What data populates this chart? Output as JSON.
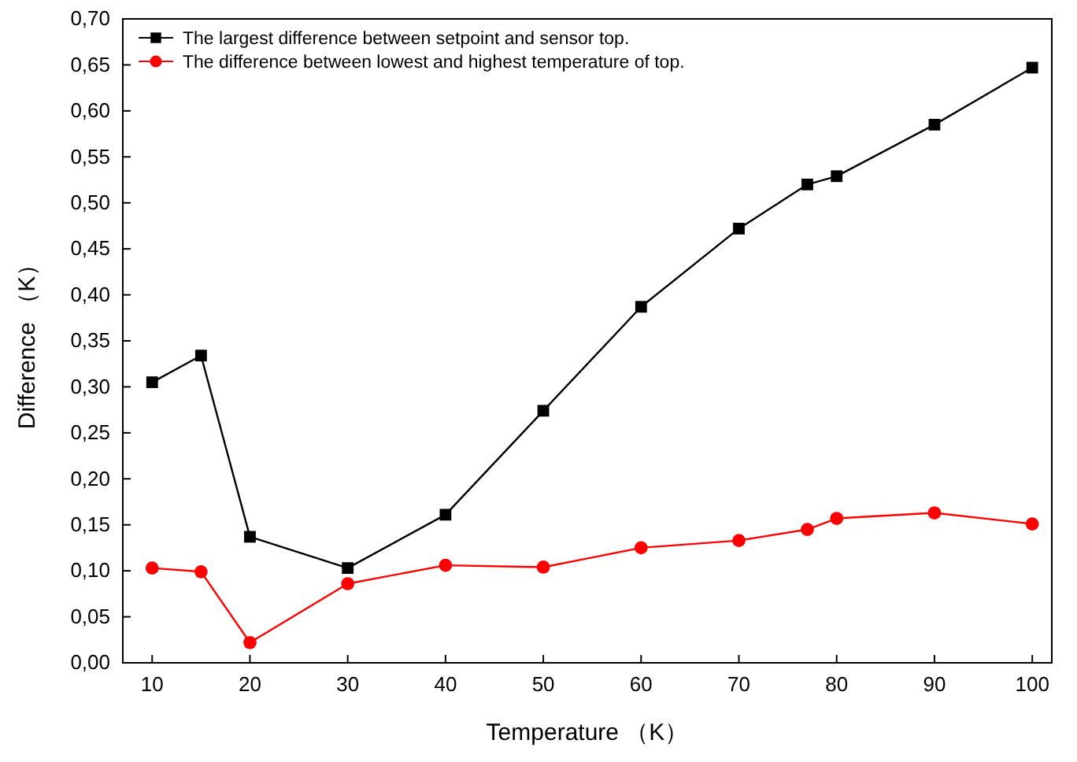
{
  "chart_data": {
    "type": "line",
    "xlabel": "Temperature （K）",
    "ylabel": "Difference （K）",
    "x": [
      10,
      15,
      20,
      30,
      40,
      50,
      60,
      70,
      77,
      80,
      90,
      100
    ],
    "xlim": [
      7,
      102
    ],
    "xticks": [
      10,
      20,
      30,
      40,
      50,
      60,
      70,
      80,
      90,
      100
    ],
    "ylim": [
      0,
      0.7
    ],
    "yticks": [
      {
        "value": 0,
        "label": "0,00"
      },
      {
        "value": 0.05,
        "label": "0,05"
      },
      {
        "value": 0.1,
        "label": "0,10"
      },
      {
        "value": 0.15,
        "label": "0,15"
      },
      {
        "value": 0.2,
        "label": "0,20"
      },
      {
        "value": 0.25,
        "label": "0,25"
      },
      {
        "value": 0.3,
        "label": "0,30"
      },
      {
        "value": 0.35,
        "label": "0,35"
      },
      {
        "value": 0.4,
        "label": "0,40"
      },
      {
        "value": 0.45,
        "label": "0,45"
      },
      {
        "value": 0.5,
        "label": "0,50"
      },
      {
        "value": 0.55,
        "label": "0,55"
      },
      {
        "value": 0.6,
        "label": "0,60"
      },
      {
        "value": 0.65,
        "label": "0,65"
      },
      {
        "value": 0.7,
        "label": "0,70"
      }
    ],
    "legend": "top left",
    "grid": false,
    "series": [
      {
        "name": "The largest difference between setpoint and sensor top.",
        "color": "#000000",
        "marker": "square",
        "values": [
          0.305,
          0.334,
          0.137,
          0.103,
          0.161,
          0.274,
          0.387,
          0.472,
          0.52,
          0.529,
          0.585,
          0.647
        ]
      },
      {
        "name": "The difference between lowest and highest temperature of top.",
        "color": "#ff0000",
        "marker": "circle",
        "values": [
          0.103,
          0.099,
          0.022,
          0.086,
          0.106,
          0.104,
          0.125,
          0.133,
          0.145,
          0.157,
          0.163,
          0.151
        ]
      }
    ]
  }
}
